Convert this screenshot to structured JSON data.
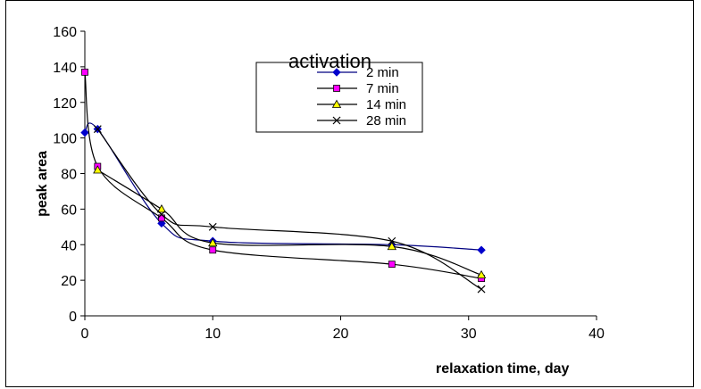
{
  "chart_data": {
    "type": "scatter",
    "title": "",
    "xlabel": "relaxation time, day",
    "ylabel": "peak area",
    "xlim": [
      0,
      40
    ],
    "ylim": [
      0,
      160
    ],
    "xticks": [
      "0",
      "10",
      "20",
      "30",
      "40"
    ],
    "yticks": [
      "0",
      "20",
      "40",
      "60",
      "80",
      "100",
      "120",
      "140",
      "160"
    ],
    "grid": false,
    "legend": {
      "title": "activation",
      "placement": "top-center"
    },
    "series": [
      {
        "name": "2 min",
        "color": "#0000cc",
        "marker": "diamond",
        "line": "#000080",
        "x": [
          0,
          1,
          6,
          10,
          24,
          31
        ],
        "y": [
          103,
          105,
          52,
          42,
          40,
          37
        ]
      },
      {
        "name": "7 min",
        "color": "#ff00ff",
        "marker": "square",
        "line": "#000000",
        "x": [
          0,
          1,
          6,
          10,
          24,
          31
        ],
        "y": [
          137,
          84,
          55,
          37,
          29,
          21
        ]
      },
      {
        "name": "14 min",
        "color": "#ffff00",
        "marker": "triangle",
        "line": "#000000",
        "x": [
          1,
          6,
          10,
          24,
          31
        ],
        "y": [
          82,
          60,
          41,
          39,
          23
        ]
      },
      {
        "name": "28 min",
        "color": "#000000",
        "marker": "x",
        "line": "#000000",
        "x": [
          1,
          6,
          10,
          24,
          31
        ],
        "y": [
          105,
          57,
          50,
          42,
          15
        ]
      }
    ]
  }
}
